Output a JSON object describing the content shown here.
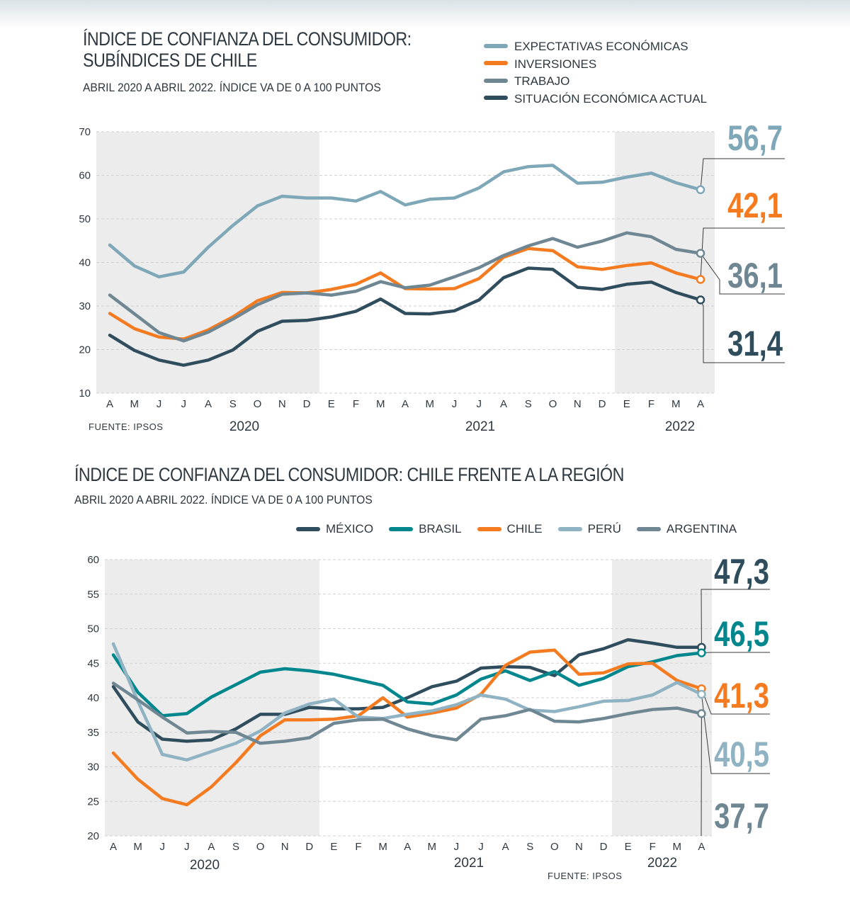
{
  "chart1": {
    "title_line1": "ÍNDICE DE CONFIANZA DEL CONSUMIDOR:",
    "title_line2": "SUBÍNDICES DE CHILE",
    "subtitle": "ABRIL 2020 A ABRIL 2022. ÍNDICE VA DE 0 A 100 PUNTOS",
    "source": "FUENTE: IPSOS",
    "legend": [
      "EXPECTATIVAS ECONÓMICAS",
      "INVERSIONES",
      "TRABAJO",
      "SITUACIÓN ECONÓMICA ACTUAL"
    ],
    "end_labels": [
      "56,7",
      "42,1",
      "36,1",
      "31,4"
    ]
  },
  "chart2": {
    "title": "ÍNDICE DE CONFIANZA DEL CONSUMIDOR: CHILE FRENTE A LA REGIÓN",
    "subtitle": "ABRIL 2020 A ABRIL 2022. ÍNDICE VA DE 0 A 100 PUNTOS",
    "source": "FUENTE: IPSOS",
    "legend": [
      "MÉXICO",
      "BRASIL",
      "CHILE",
      "PERÚ",
      "ARGENTINA"
    ],
    "end_labels": [
      "47,3",
      "46,5",
      "41,3",
      "40,5",
      "37,7"
    ]
  },
  "chart_data": [
    {
      "type": "line",
      "title": "ÍNDICE DE CONFIANZA DEL CONSUMIDOR: SUBÍNDICES DE CHILE",
      "categories": [
        "A",
        "M",
        "J",
        "J",
        "A",
        "S",
        "O",
        "N",
        "D",
        "E",
        "F",
        "M",
        "A",
        "M",
        "J",
        "J",
        "A",
        "S",
        "O",
        "N",
        "D",
        "E",
        "F",
        "M",
        "A"
      ],
      "years": [
        "2020",
        "2021",
        "2022"
      ],
      "ylim": [
        10,
        70
      ],
      "yticks": [
        10,
        20,
        30,
        40,
        50,
        60,
        70
      ],
      "series": [
        {
          "name": "EXPECTATIVAS ECONÓMICAS",
          "color": "#7ea7b8",
          "values": [
            44.0,
            39.2,
            36.7,
            37.8,
            43.5,
            48.5,
            53.0,
            55.2,
            54.8,
            54.8,
            54.1,
            56.3,
            53.2,
            54.5,
            54.8,
            57.1,
            60.8,
            62.0,
            62.3,
            58.2,
            58.4,
            59.6,
            60.5,
            58.3,
            56.7
          ]
        },
        {
          "name": "INVERSIONES",
          "color": "#f47b20",
          "values": [
            28.3,
            24.8,
            22.9,
            22.4,
            24.5,
            27.5,
            31.2,
            33.1,
            33.0,
            33.8,
            35.0,
            37.6,
            34.0,
            33.9,
            34.0,
            36.3,
            41.2,
            43.2,
            42.7,
            39.0,
            38.4,
            39.3,
            39.9,
            37.6,
            36.1
          ]
        },
        {
          "name": "TRABAJO",
          "color": "#6f8793",
          "values": [
            32.5,
            28.2,
            23.9,
            22.0,
            24.0,
            27.0,
            30.3,
            32.7,
            33.0,
            32.5,
            33.4,
            35.6,
            34.2,
            34.8,
            36.7,
            38.8,
            41.6,
            43.8,
            45.5,
            43.5,
            44.9,
            46.8,
            45.9,
            43.0,
            42.1
          ]
        },
        {
          "name": "SITUACIÓN ECONÓMICA ACTUAL",
          "color": "#2f4d5d",
          "values": [
            23.3,
            19.8,
            17.6,
            16.4,
            17.6,
            19.9,
            24.2,
            26.5,
            26.7,
            27.5,
            28.8,
            31.6,
            28.3,
            28.2,
            28.9,
            31.4,
            36.5,
            38.7,
            38.4,
            34.3,
            33.8,
            35.0,
            35.5,
            33.1,
            31.4
          ]
        }
      ]
    },
    {
      "type": "line",
      "title": "ÍNDICE DE CONFIANZA DEL CONSUMIDOR: CHILE FRENTE A LA REGIÓN",
      "categories": [
        "A",
        "M",
        "J",
        "J",
        "A",
        "S",
        "O",
        "N",
        "D",
        "E",
        "F",
        "M",
        "A",
        "M",
        "J",
        "J",
        "A",
        "S",
        "O",
        "N",
        "D",
        "E",
        "F",
        "M",
        "A"
      ],
      "years": [
        "2020",
        "2021",
        "2022"
      ],
      "ylim": [
        20,
        60
      ],
      "yticks": [
        20,
        25,
        30,
        35,
        40,
        45,
        50,
        55,
        60
      ],
      "series": [
        {
          "name": "MÉXICO",
          "color": "#2f4d5d",
          "values": [
            41.6,
            36.5,
            34.0,
            33.7,
            33.9,
            35.5,
            37.6,
            37.6,
            38.6,
            38.4,
            38.4,
            38.6,
            40.0,
            41.6,
            42.4,
            44.3,
            44.5,
            44.4,
            43.2,
            46.2,
            47.1,
            48.4,
            47.9,
            47.3,
            47.3
          ]
        },
        {
          "name": "BRASIL",
          "color": "#00878e",
          "values": [
            46.2,
            40.8,
            37.4,
            37.7,
            40.1,
            41.9,
            43.7,
            44.2,
            43.9,
            43.4,
            42.6,
            41.8,
            39.4,
            39.1,
            40.4,
            42.7,
            43.9,
            42.5,
            43.8,
            41.8,
            42.8,
            44.5,
            45.2,
            46.1,
            46.5
          ]
        },
        {
          "name": "CHILE",
          "color": "#f47b20",
          "values": [
            32.0,
            28.2,
            25.4,
            24.5,
            27.1,
            30.6,
            34.5,
            36.8,
            36.8,
            36.9,
            37.4,
            40.0,
            37.2,
            37.8,
            38.5,
            40.5,
            44.7,
            46.6,
            46.9,
            43.4,
            43.6,
            44.9,
            45.0,
            42.5,
            41.3
          ]
        },
        {
          "name": "PERÚ",
          "color": "#8fb3c3",
          "values": [
            47.8,
            39.5,
            31.8,
            31.0,
            32.2,
            33.4,
            35.2,
            37.8,
            39.1,
            39.8,
            37.2,
            37.0,
            37.6,
            38.1,
            39.0,
            40.4,
            39.8,
            38.2,
            38.0,
            38.7,
            39.5,
            39.6,
            40.4,
            42.2,
            40.5
          ]
        },
        {
          "name": "ARGENTINA",
          "color": "#6f8793",
          "values": [
            42.1,
            39.7,
            37.2,
            34.9,
            35.1,
            35.0,
            33.4,
            33.7,
            34.2,
            36.3,
            36.8,
            36.9,
            35.5,
            34.5,
            33.9,
            36.9,
            37.4,
            38.3,
            36.6,
            36.5,
            37.0,
            37.7,
            38.3,
            38.5,
            37.7
          ]
        }
      ]
    }
  ]
}
